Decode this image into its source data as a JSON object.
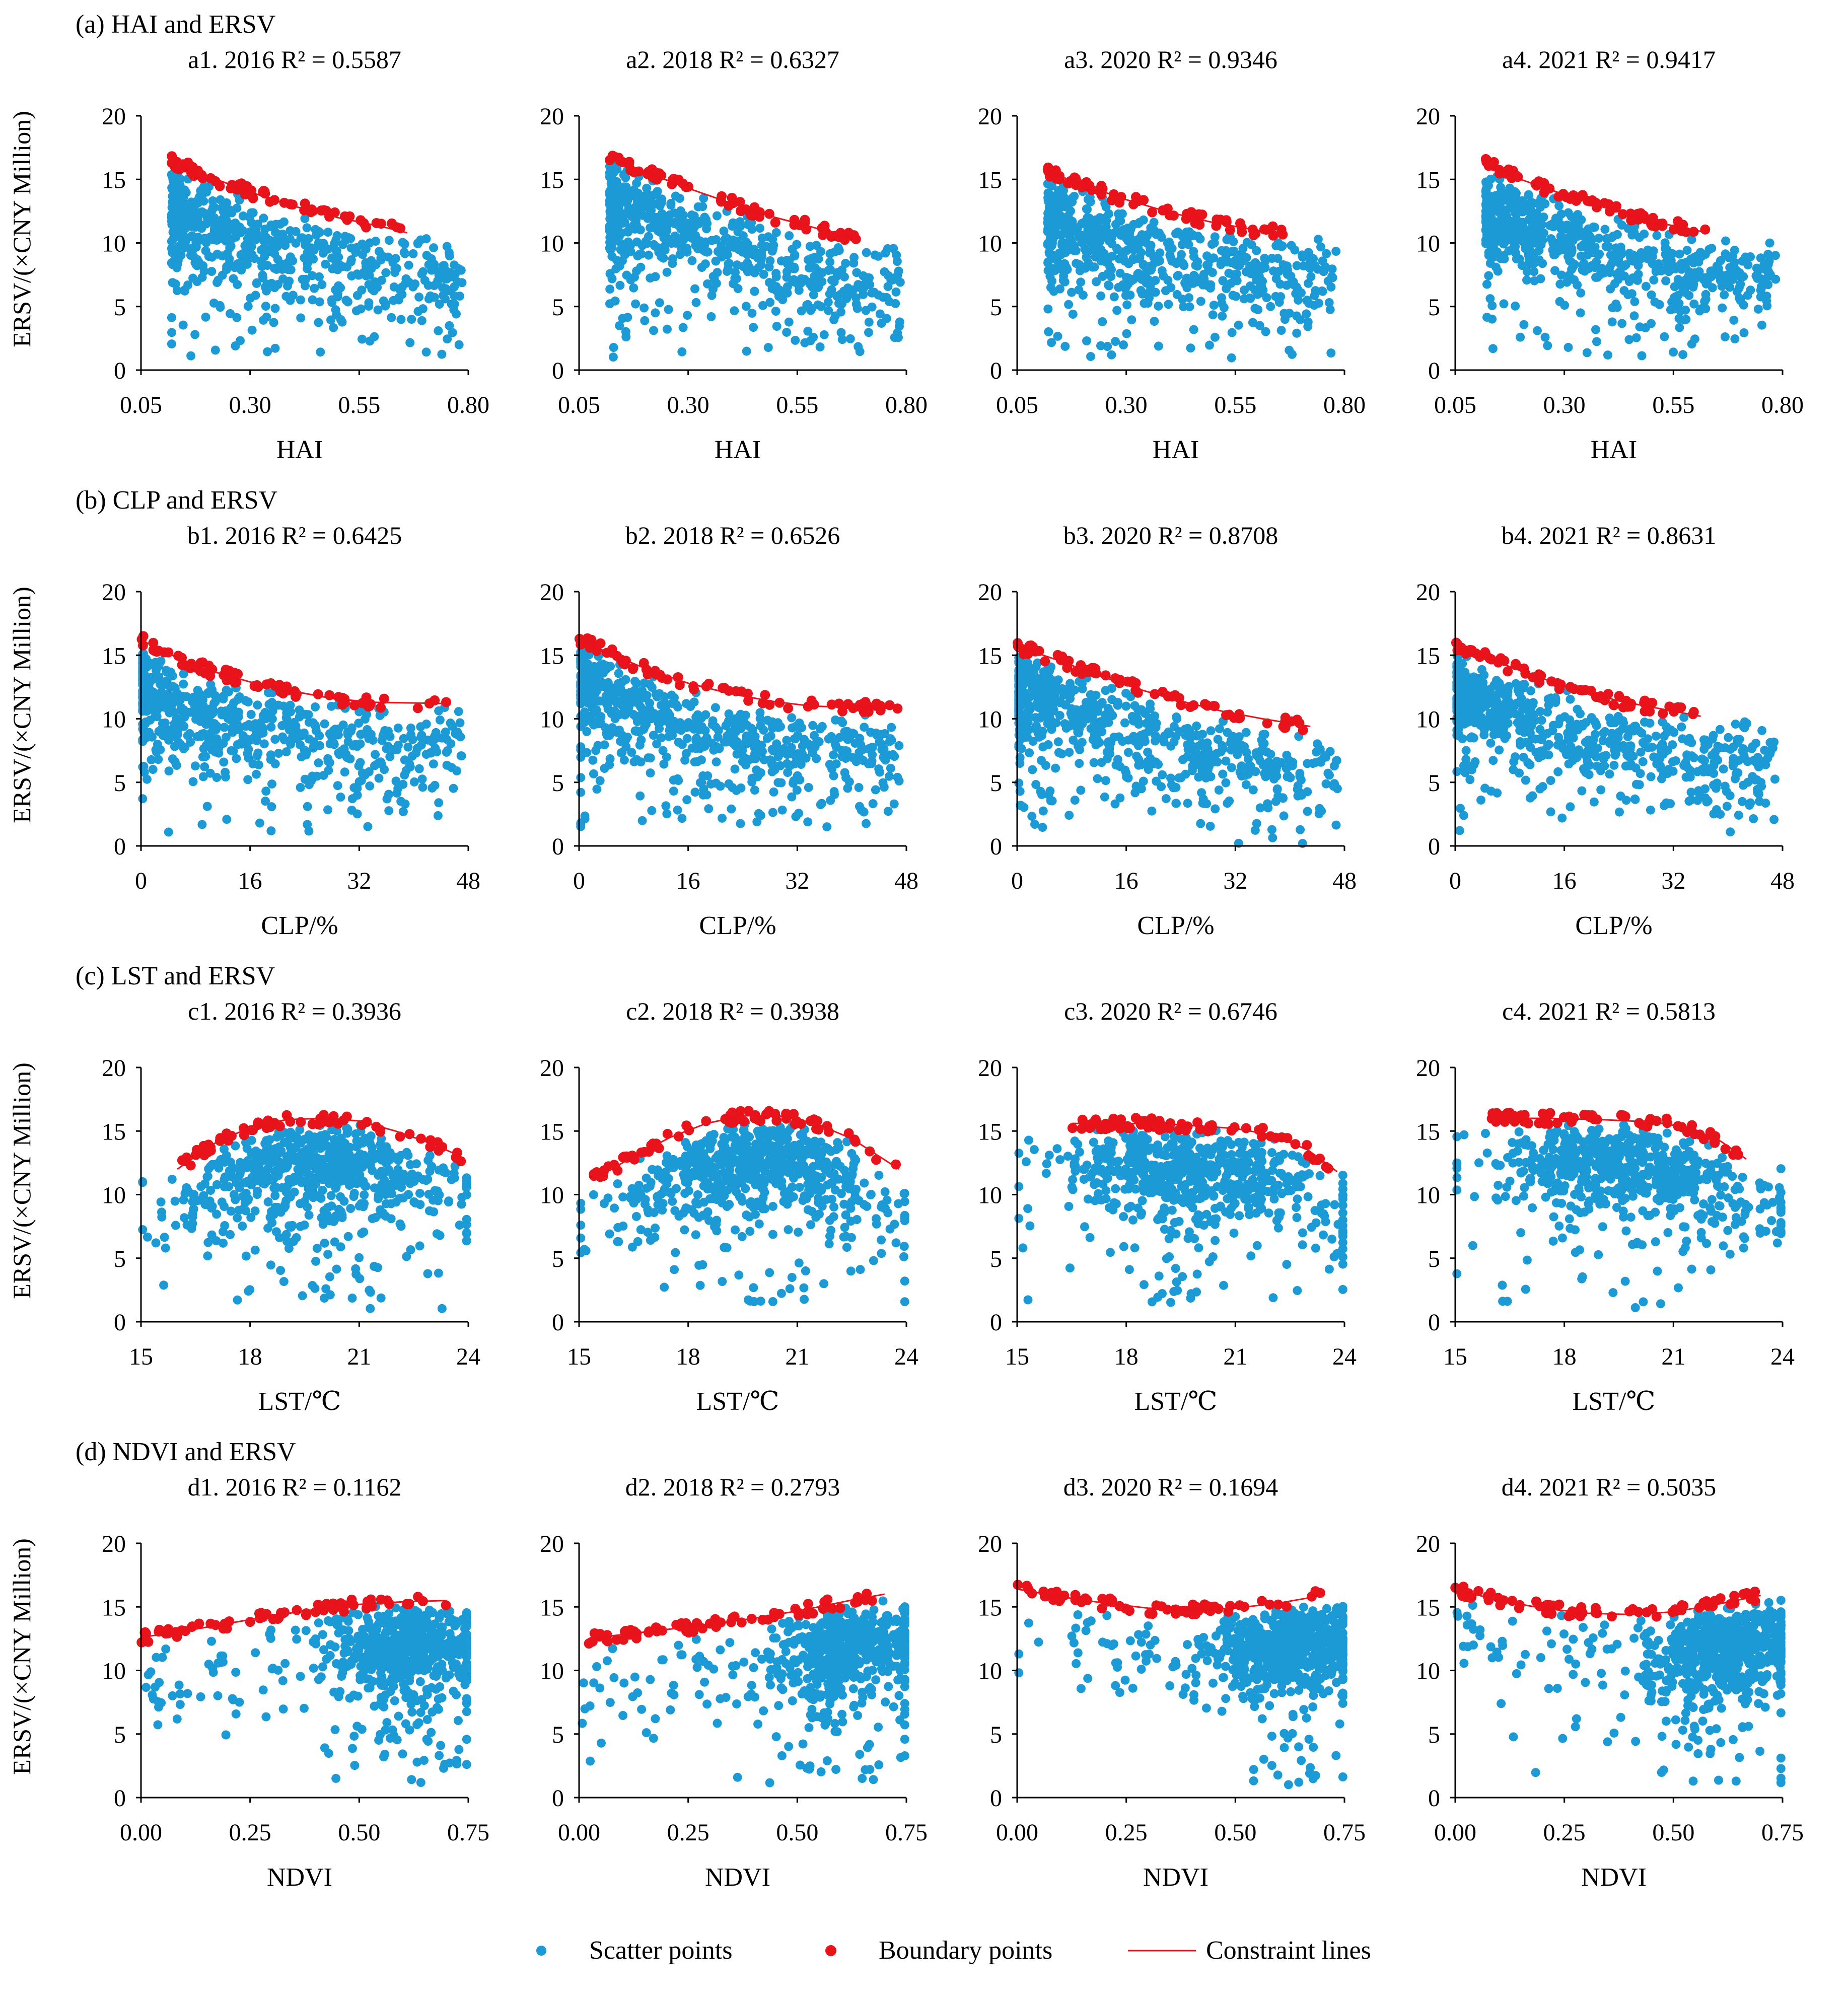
{
  "figure": {
    "legend": {
      "scatter": "Scatter points",
      "boundary": "Boundary points",
      "line": "Constraint lines"
    },
    "ylabel": "ERSV/(×CNY Million)",
    "colors": {
      "scatter": "#1b9ad6",
      "boundary": "#e8131b",
      "line": "#e8131b",
      "axis": "#000000"
    }
  },
  "rows": [
    {
      "section_title": "(a) HAI and ERSV",
      "xlabel": "HAI"
    },
    {
      "section_title": "(b) CLP and ERSV",
      "xlabel": "CLP/%"
    },
    {
      "section_title": "(c) LST and ERSV",
      "xlabel": "LST/℃"
    },
    {
      "section_title": "(d) NDVI and ERSV",
      "xlabel": "NDVI"
    }
  ],
  "chart_data": [
    {
      "type": "scatter",
      "id": "a1",
      "title": "a1. 2016   R² = 0.5587",
      "xlabel": "HAI",
      "ylabel": "ERSV/(×CNY Million)",
      "xlim": [
        0.05,
        0.8
      ],
      "ylim": [
        0,
        20
      ],
      "xticks": [
        "0.05",
        "0.30",
        "0.55",
        "0.80"
      ],
      "yticks": [
        "0",
        "5",
        "10",
        "15",
        "20"
      ],
      "constraint_line": [
        [
          0.12,
          16.4
        ],
        [
          0.2,
          15.3
        ],
        [
          0.3,
          14.0
        ],
        [
          0.4,
          12.9
        ],
        [
          0.5,
          12.0
        ],
        [
          0.6,
          11.3
        ],
        [
          0.66,
          10.8
        ]
      ]
    },
    {
      "type": "scatter",
      "id": "a2",
      "title": "a2. 2018   R² = 0.6327",
      "xlabel": "HAI",
      "ylabel": "ERSV/(×CNY Million)",
      "xlim": [
        0.05,
        0.8
      ],
      "ylim": [
        0,
        20
      ],
      "xticks": [
        "0.05",
        "0.30",
        "0.55",
        "0.80"
      ],
      "yticks": [
        "0",
        "5",
        "10",
        "15",
        "20"
      ],
      "constraint_line": [
        [
          0.12,
          16.8
        ],
        [
          0.2,
          15.6
        ],
        [
          0.3,
          14.3
        ],
        [
          0.4,
          13.1
        ],
        [
          0.5,
          12.0
        ],
        [
          0.6,
          11.1
        ],
        [
          0.69,
          10.4
        ]
      ]
    },
    {
      "type": "scatter",
      "id": "a3",
      "title": "a3. 2020   R² = 0.9346",
      "xlabel": "HAI",
      "ylabel": "ERSV/(×CNY Million)",
      "xlim": [
        0.05,
        0.8
      ],
      "ylim": [
        0,
        20
      ],
      "xticks": [
        "0.05",
        "0.30",
        "0.55",
        "0.80"
      ],
      "yticks": [
        "0",
        "5",
        "10",
        "15",
        "20"
      ],
      "constraint_line": [
        [
          0.12,
          15.6
        ],
        [
          0.2,
          14.6
        ],
        [
          0.3,
          13.4
        ],
        [
          0.4,
          12.4
        ],
        [
          0.5,
          11.6
        ],
        [
          0.6,
          11.0
        ],
        [
          0.66,
          10.8
        ]
      ]
    },
    {
      "type": "scatter",
      "id": "a4",
      "title": "a4. 2021   R² = 0.9417",
      "xlabel": "HAI",
      "ylabel": "ERSV/(×CNY Million)",
      "xlim": [
        0.05,
        0.8
      ],
      "ylim": [
        0,
        20
      ],
      "xticks": [
        "0.05",
        "0.30",
        "0.55",
        "0.80"
      ],
      "yticks": [
        "0",
        "5",
        "10",
        "15",
        "20"
      ],
      "constraint_line": [
        [
          0.12,
          16.2
        ],
        [
          0.2,
          15.0
        ],
        [
          0.3,
          13.8
        ],
        [
          0.4,
          12.7
        ],
        [
          0.5,
          11.7
        ],
        [
          0.6,
          11.0
        ],
        [
          0.63,
          10.8
        ]
      ]
    },
    {
      "type": "scatter",
      "id": "b1",
      "title": "b1. 2016   R² = 0.6425",
      "xlabel": "CLP/%",
      "ylabel": "ERSV/(×CNY Million)",
      "xlim": [
        0,
        48
      ],
      "ylim": [
        0,
        20
      ],
      "xticks": [
        "0",
        "16",
        "32",
        "48"
      ],
      "yticks": [
        "0",
        "5",
        "10",
        "15",
        "20"
      ],
      "constraint_line": [
        [
          0,
          16.2
        ],
        [
          5,
          14.9
        ],
        [
          10,
          13.8
        ],
        [
          16,
          12.9
        ],
        [
          22,
          12.2
        ],
        [
          28,
          11.6
        ],
        [
          34,
          11.3
        ],
        [
          45,
          11.2
        ]
      ]
    },
    {
      "type": "scatter",
      "id": "b2",
      "title": "b2. 2018   R² = 0.6526",
      "xlabel": "CLP/%",
      "ylabel": "ERSV/(×CNY Million)",
      "xlim": [
        0,
        48
      ],
      "ylim": [
        0,
        20
      ],
      "xticks": [
        "0",
        "16",
        "32",
        "48"
      ],
      "yticks": [
        "0",
        "5",
        "10",
        "15",
        "20"
      ],
      "constraint_line": [
        [
          0,
          16.3
        ],
        [
          5,
          15.0
        ],
        [
          10,
          13.9
        ],
        [
          16,
          12.8
        ],
        [
          22,
          12.0
        ],
        [
          28,
          11.4
        ],
        [
          34,
          11.0
        ],
        [
          47,
          10.8
        ]
      ]
    },
    {
      "type": "scatter",
      "id": "b3",
      "title": "b3. 2020   R² = 0.8708",
      "xlabel": "CLP/%",
      "ylabel": "ERSV/(×CNY Million)",
      "xlim": [
        0,
        48
      ],
      "ylim": [
        0,
        20
      ],
      "xticks": [
        "0",
        "16",
        "32",
        "48"
      ],
      "yticks": [
        "0",
        "5",
        "10",
        "15",
        "20"
      ],
      "constraint_line": [
        [
          0,
          15.7
        ],
        [
          6,
          14.6
        ],
        [
          12,
          13.4
        ],
        [
          18,
          12.3
        ],
        [
          24,
          11.4
        ],
        [
          30,
          10.6
        ],
        [
          36,
          10.0
        ],
        [
          43,
          9.4
        ]
      ]
    },
    {
      "type": "scatter",
      "id": "b4",
      "title": "b4. 2021   R² = 0.8631",
      "xlabel": "CLP/%",
      "ylabel": "ERSV/(×CNY Million)",
      "xlim": [
        0,
        48
      ],
      "ylim": [
        0,
        20
      ],
      "xticks": [
        "0",
        "16",
        "32",
        "48"
      ],
      "yticks": [
        "0",
        "5",
        "10",
        "15",
        "20"
      ],
      "constraint_line": [
        [
          0,
          15.7
        ],
        [
          6,
          14.5
        ],
        [
          12,
          13.3
        ],
        [
          18,
          12.3
        ],
        [
          24,
          11.4
        ],
        [
          30,
          10.8
        ],
        [
          36,
          10.2
        ]
      ]
    },
    {
      "type": "scatter",
      "id": "c1",
      "title": "c1. 2016   R² = 0.3936",
      "xlabel": "LST/℃",
      "ylabel": "ERSV/(×CNY Million)",
      "xlim": [
        15,
        24
      ],
      "ylim": [
        0,
        20
      ],
      "xticks": [
        "15",
        "18",
        "21",
        "24"
      ],
      "yticks": [
        "0",
        "5",
        "10",
        "15",
        "20"
      ],
      "constraint_line": [
        [
          16.0,
          12.0
        ],
        [
          17.0,
          14.0
        ],
        [
          18.0,
          15.3
        ],
        [
          19.0,
          15.9
        ],
        [
          20.0,
          16.0
        ],
        [
          21.0,
          15.8
        ],
        [
          22.0,
          15.0
        ],
        [
          23.0,
          14.0
        ],
        [
          23.8,
          13.0
        ]
      ]
    },
    {
      "type": "scatter",
      "id": "c2",
      "title": "c2. 2018   R² = 0.3938",
      "xlabel": "LST/℃",
      "ylabel": "ERSV/(×CNY Million)",
      "xlim": [
        15,
        24
      ],
      "ylim": [
        0,
        20
      ],
      "xticks": [
        "15",
        "18",
        "21",
        "24"
      ],
      "yticks": [
        "0",
        "5",
        "10",
        "15",
        "20"
      ],
      "constraint_line": [
        [
          15.4,
          11.2
        ],
        [
          16.5,
          13.0
        ],
        [
          17.5,
          14.5
        ],
        [
          18.5,
          15.6
        ],
        [
          19.5,
          16.2
        ],
        [
          20.5,
          16.2
        ],
        [
          21.5,
          15.6
        ],
        [
          22.5,
          14.4
        ],
        [
          23.8,
          12.0
        ]
      ]
    },
    {
      "type": "scatter",
      "id": "c3",
      "title": "c3. 2020   R² = 0.6746",
      "xlabel": "LST/℃",
      "ylabel": "ERSV/(×CNY Million)",
      "xlim": [
        15,
        24
      ],
      "ylim": [
        0,
        20
      ],
      "xticks": [
        "15",
        "18",
        "21",
        "24"
      ],
      "yticks": [
        "0",
        "5",
        "10",
        "15",
        "20"
      ],
      "constraint_line": [
        [
          16.5,
          15.6
        ],
        [
          18.0,
          15.6
        ],
        [
          19.5,
          15.5
        ],
        [
          21.0,
          15.2
        ],
        [
          22.0,
          14.7
        ],
        [
          23.0,
          13.5
        ],
        [
          23.8,
          11.8
        ]
      ]
    },
    {
      "type": "scatter",
      "id": "c4",
      "title": "c4. 2021   R² = 0.5813",
      "xlabel": "LST/℃",
      "ylabel": "ERSV/(×CNY Million)",
      "xlim": [
        15,
        24
      ],
      "ylim": [
        0,
        20
      ],
      "xticks": [
        "15",
        "18",
        "21",
        "24"
      ],
      "yticks": [
        "0",
        "5",
        "10",
        "15",
        "20"
      ],
      "constraint_line": [
        [
          16.0,
          16.0
        ],
        [
          17.5,
          16.0
        ],
        [
          19.0,
          15.9
        ],
        [
          20.5,
          15.7
        ],
        [
          21.5,
          15.2
        ],
        [
          22.3,
          14.2
        ],
        [
          23.0,
          12.8
        ]
      ]
    },
    {
      "type": "scatter",
      "id": "d1",
      "title": "d1. 2016   R² = 0.1162",
      "xlabel": "NDVI",
      "ylabel": "ERSV/(×CNY Million)",
      "xlim": [
        0,
        0.75
      ],
      "ylim": [
        0,
        20
      ],
      "xticks": [
        "0.00",
        "0.25",
        "0.50",
        "0.75"
      ],
      "yticks": [
        "0",
        "5",
        "10",
        "15",
        "20"
      ],
      "constraint_line": [
        [
          0.0,
          12.6
        ],
        [
          0.1,
          13.1
        ],
        [
          0.2,
          13.7
        ],
        [
          0.3,
          14.3
        ],
        [
          0.4,
          14.8
        ],
        [
          0.5,
          15.2
        ],
        [
          0.6,
          15.4
        ],
        [
          0.7,
          15.5
        ]
      ]
    },
    {
      "type": "scatter",
      "id": "d2",
      "title": "d2. 2018   R² = 0.2793",
      "xlabel": "NDVI",
      "ylabel": "ERSV/(×CNY Million)",
      "xlim": [
        0,
        0.75
      ],
      "ylim": [
        0,
        20
      ],
      "xticks": [
        "0.00",
        "0.25",
        "0.50",
        "0.75"
      ],
      "yticks": [
        "0",
        "5",
        "10",
        "15",
        "20"
      ],
      "constraint_line": [
        [
          0.02,
          12.5
        ],
        [
          0.12,
          12.9
        ],
        [
          0.22,
          13.3
        ],
        [
          0.32,
          13.7
        ],
        [
          0.42,
          14.2
        ],
        [
          0.52,
          14.8
        ],
        [
          0.62,
          15.5
        ],
        [
          0.7,
          16.0
        ]
      ]
    },
    {
      "type": "scatter",
      "id": "d3",
      "title": "d3. 2020   R² = 0.1694",
      "xlabel": "NDVI",
      "ylabel": "ERSV/(×CNY Million)",
      "xlim": [
        0,
        0.75
      ],
      "ylim": [
        0,
        20
      ],
      "xticks": [
        "0.00",
        "0.25",
        "0.50",
        "0.75"
      ],
      "yticks": [
        "0",
        "5",
        "10",
        "15",
        "20"
      ],
      "constraint_line": [
        [
          0.0,
          16.4
        ],
        [
          0.1,
          15.8
        ],
        [
          0.2,
          15.3
        ],
        [
          0.3,
          14.9
        ],
        [
          0.4,
          14.8
        ],
        [
          0.5,
          14.9
        ],
        [
          0.6,
          15.3
        ],
        [
          0.7,
          15.9
        ]
      ]
    },
    {
      "type": "scatter",
      "id": "d4",
      "title": "d4. 2021   R² = 0.5035",
      "xlabel": "NDVI",
      "ylabel": "ERSV/(×CNY Million)",
      "xlim": [
        0,
        0.75
      ],
      "ylim": [
        0,
        20
      ],
      "xticks": [
        "0.00",
        "0.25",
        "0.50",
        "0.75"
      ],
      "yticks": [
        "0",
        "5",
        "10",
        "15",
        "20"
      ],
      "constraint_line": [
        [
          0.0,
          16.4
        ],
        [
          0.1,
          15.5
        ],
        [
          0.2,
          14.9
        ],
        [
          0.3,
          14.5
        ],
        [
          0.4,
          14.4
        ],
        [
          0.5,
          14.6
        ],
        [
          0.6,
          15.2
        ],
        [
          0.7,
          15.9
        ]
      ]
    }
  ]
}
